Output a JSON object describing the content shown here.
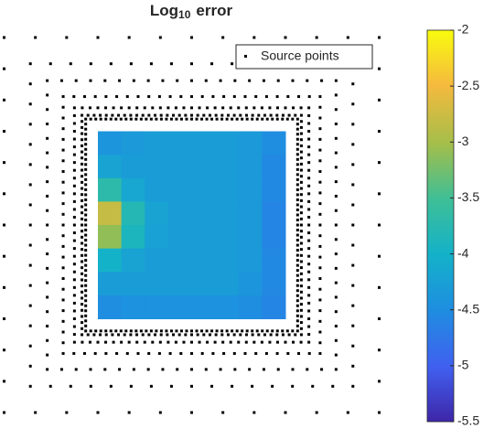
{
  "chart_data": {
    "type": "heatmap",
    "title": "Log",
    "title_subscript": "10",
    "title_suffix": "error",
    "legend_label": "Source points",
    "xlim": [
      -1,
      1
    ],
    "ylim": [
      -1,
      1
    ],
    "z": [
      [
        -4.4,
        -4.35,
        -4.3,
        -4.3,
        -4.3,
        -4.3,
        -4.35,
        -4.5
      ],
      [
        -4.2,
        -4.3,
        -4.3,
        -4.3,
        -4.3,
        -4.3,
        -4.35,
        -4.55
      ],
      [
        -3.7,
        -4.15,
        -4.3,
        -4.3,
        -4.3,
        -4.3,
        -4.35,
        -4.55
      ],
      [
        -2.8,
        -3.8,
        -4.2,
        -4.3,
        -4.3,
        -4.3,
        -4.35,
        -4.6
      ],
      [
        -3.1,
        -3.9,
        -4.25,
        -4.3,
        -4.3,
        -4.3,
        -4.35,
        -4.6
      ],
      [
        -4.0,
        -4.2,
        -4.3,
        -4.3,
        -4.3,
        -4.3,
        -4.35,
        -4.55
      ],
      [
        -4.3,
        -4.3,
        -4.3,
        -4.3,
        -4.3,
        -4.3,
        -4.4,
        -4.55
      ],
      [
        -4.5,
        -4.45,
        -4.45,
        -4.45,
        -4.45,
        -4.45,
        -4.5,
        -4.6
      ]
    ],
    "source_rings": [
      {
        "half_width": 2.0,
        "count_per_side": 12
      },
      {
        "half_width": 1.72,
        "count_per_side": 16
      },
      {
        "half_width": 1.54,
        "count_per_side": 20
      },
      {
        "half_width": 1.37,
        "count_per_side": 24
      },
      {
        "half_width": 1.25,
        "count_per_side": 30
      },
      {
        "half_width": 1.17,
        "count_per_side": 36
      },
      {
        "half_width": 1.13,
        "count_per_side": 42
      }
    ],
    "source_color": "#000000",
    "clim": [
      -5.5,
      -2
    ],
    "cticks": [
      -2,
      -2.5,
      -3,
      -3.5,
      -4,
      -4.5,
      -5,
      -5.5
    ]
  }
}
